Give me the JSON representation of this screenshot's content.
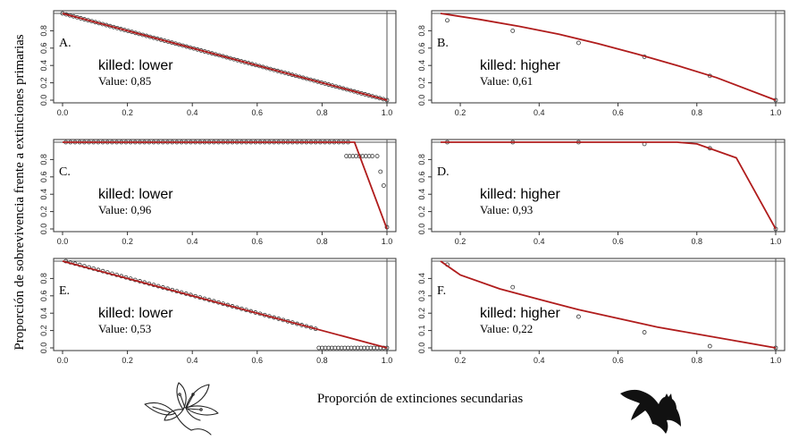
{
  "figure": {
    "ylabel": "Proporción de sobrevivencia frente a extinciones primarias",
    "xlabel": "Proporción de extinciones secundarias",
    "icons": {
      "left": "flower-icon",
      "right": "bat-icon"
    }
  },
  "chart_data": [
    {
      "type": "scatter",
      "panel": "A.",
      "killed": "killed:  lower",
      "value": "Value: 0,85",
      "xlim": [
        0,
        1
      ],
      "ylim": [
        0,
        1
      ],
      "xticks": [
        "0.0",
        "0.2",
        "0.4",
        "0.6",
        "0.8",
        "1.0"
      ],
      "yticks": [
        "0.0",
        "0.2",
        "0.4",
        "0.6",
        "0.8"
      ],
      "fit_curve": {
        "x": [
          0,
          1
        ],
        "y": [
          1,
          0
        ]
      },
      "points_rule": "linear-dense",
      "points": {
        "n": 90,
        "from": [
          0,
          1
        ],
        "to": [
          1,
          0
        ]
      }
    },
    {
      "type": "scatter",
      "panel": "B.",
      "killed": "killed:  higher",
      "value": "Value: 0,61",
      "xlim": [
        0.15,
        1
      ],
      "ylim": [
        0,
        1
      ],
      "xticks": [
        "0.2",
        "0.4",
        "0.6",
        "0.8",
        "1.0"
      ],
      "yticks": [
        "0.0",
        "0.2",
        "0.4",
        "0.6",
        "0.8"
      ],
      "fit_curve": {
        "x": [
          0.15,
          0.25,
          0.35,
          0.45,
          0.55,
          0.65,
          0.75,
          0.85,
          1.0
        ],
        "y": [
          1.0,
          0.93,
          0.85,
          0.76,
          0.65,
          0.53,
          0.4,
          0.26,
          0.0
        ]
      },
      "points": {
        "x": [
          0.167,
          0.333,
          0.5,
          0.667,
          0.833,
          1.0
        ],
        "y": [
          0.92,
          0.8,
          0.66,
          0.5,
          0.28,
          0.0
        ]
      }
    },
    {
      "type": "scatter",
      "panel": "C.",
      "killed": "killed:  lower",
      "value": "Value: 0,96",
      "xlim": [
        0,
        1
      ],
      "ylim": [
        0,
        1
      ],
      "xticks": [
        "0.0",
        "0.2",
        "0.4",
        "0.6",
        "0.8",
        "1.0"
      ],
      "yticks": [
        "0.0",
        "0.2",
        "0.4",
        "0.6",
        "0.8"
      ],
      "fit_curve": {
        "x": [
          0,
          0.9,
          1.0
        ],
        "y": [
          1.0,
          1.0,
          0.0
        ]
      },
      "points_rule": "flat-then-drop",
      "points": {
        "flat": {
          "n": 62,
          "x_from": 0.01,
          "x_to": 0.88,
          "y": 1.0
        },
        "tail": {
          "x": [
            0.875,
            0.885,
            0.895,
            0.905,
            0.915,
            0.925,
            0.935,
            0.945,
            0.955,
            0.97,
            0.98,
            0.99,
            1.0
          ],
          "y": [
            0.84,
            0.84,
            0.84,
            0.84,
            0.84,
            0.84,
            0.84,
            0.84,
            0.84,
            0.84,
            0.66,
            0.5,
            0.02
          ]
        }
      }
    },
    {
      "type": "scatter",
      "panel": "D.",
      "killed": "killed:  higher",
      "value": "Value: 0,93",
      "xlim": [
        0.15,
        1
      ],
      "ylim": [
        0,
        1
      ],
      "xticks": [
        "0.2",
        "0.4",
        "0.6",
        "0.8",
        "1.0"
      ],
      "yticks": [
        "0.0",
        "0.2",
        "0.4",
        "0.6",
        "0.8"
      ],
      "fit_curve": {
        "x": [
          0.15,
          0.75,
          0.8,
          0.9,
          1.0
        ],
        "y": [
          1.0,
          1.0,
          0.98,
          0.82,
          0.0
        ]
      },
      "points": {
        "x": [
          0.167,
          0.333,
          0.5,
          0.667,
          0.833,
          1.0
        ],
        "y": [
          1.0,
          1.0,
          1.0,
          0.98,
          0.93,
          0.0
        ]
      }
    },
    {
      "type": "scatter",
      "panel": "E.",
      "killed": "killed:  lower",
      "value": "Value: 0,53",
      "xlim": [
        0,
        1
      ],
      "ylim": [
        0,
        1
      ],
      "xticks": [
        "0.0",
        "0.2",
        "0.4",
        "0.6",
        "0.8",
        "1.0"
      ],
      "yticks": [
        "0.0",
        "0.2",
        "0.4",
        "0.6",
        "0.8"
      ],
      "fit_curve": {
        "x": [
          0,
          1
        ],
        "y": [
          1,
          0
        ]
      },
      "points_rule": "linear-then-zero",
      "points": {
        "line": {
          "n": 55,
          "x_from": 0.01,
          "x_to": 0.78,
          "y_from": 1.0,
          "y_to": 0.22
        },
        "zero": {
          "n": 22,
          "x_from": 0.79,
          "x_to": 1.0,
          "y": 0.0
        }
      }
    },
    {
      "type": "scatter",
      "panel": "F.",
      "killed": "killed:  higher",
      "value": "Value: 0,22",
      "xlim": [
        0.15,
        1
      ],
      "ylim": [
        0,
        0.5
      ],
      "xticks": [
        "0.2",
        "0.4",
        "0.6",
        "0.8",
        "1.0"
      ],
      "yticks": [
        "0.0",
        "0.1",
        "0.2",
        "0.3",
        "0.4"
      ],
      "fit_curve": {
        "x": [
          0.15,
          0.2,
          0.3,
          0.4,
          0.5,
          0.6,
          0.7,
          0.8,
          0.9,
          1.0
        ],
        "y": [
          0.5,
          0.42,
          0.34,
          0.28,
          0.22,
          0.17,
          0.12,
          0.08,
          0.04,
          0.0
        ]
      },
      "points": {
        "x": [
          0.167,
          0.333,
          0.5,
          0.667,
          0.833,
          1.0
        ],
        "y": [
          0.48,
          0.35,
          0.18,
          0.09,
          0.01,
          0.0
        ]
      }
    }
  ]
}
